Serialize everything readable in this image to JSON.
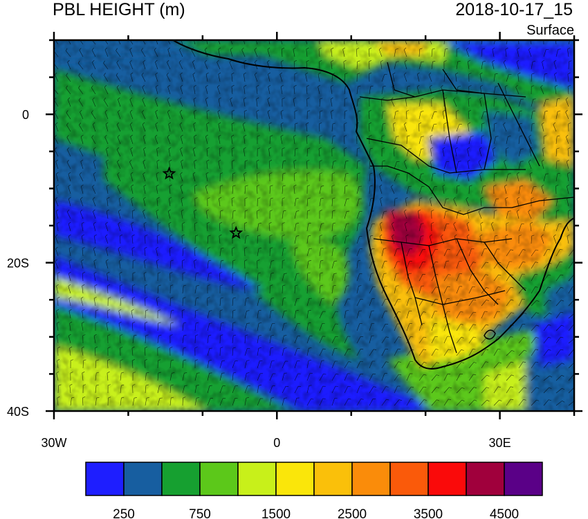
{
  "header": {
    "title": "PBL HEIGHT (m)",
    "datetime": "2018-10-17_15",
    "level": "Surface"
  },
  "map": {
    "x_ticks": [
      {
        "label": "30W",
        "lon": -30
      },
      {
        "label": "0",
        "lon": 0
      },
      {
        "label": "30E",
        "lon": 30
      }
    ],
    "y_ticks": [
      {
        "label": "0",
        "lat": 0
      },
      {
        "label": "20S",
        "lat": -20
      },
      {
        "label": "40S",
        "lat": -40
      }
    ],
    "lon_range": [
      -30,
      40
    ],
    "lat_range": [
      -40,
      10
    ],
    "markers": [
      {
        "name": "star-marker-1",
        "lon": -14.5,
        "lat": -8
      },
      {
        "name": "star-marker-2",
        "lon": -5.5,
        "lat": -16
      }
    ]
  },
  "colorbar": {
    "colors": [
      "#1e1eff",
      "#175ea0",
      "#16a030",
      "#5cc81a",
      "#c8f01a",
      "#fae60a",
      "#fac00a",
      "#fa8c0a",
      "#fa5a0a",
      "#fa0a0a",
      "#a0003c",
      "#5a0087"
    ],
    "labels": [
      {
        "text": "250",
        "boundary": 1
      },
      {
        "text": "750",
        "boundary": 3
      },
      {
        "text": "1500",
        "boundary": 5
      },
      {
        "text": "2500",
        "boundary": 7
      },
      {
        "text": "3500",
        "boundary": 9
      },
      {
        "text": "4500",
        "boundary": 11
      }
    ]
  }
}
